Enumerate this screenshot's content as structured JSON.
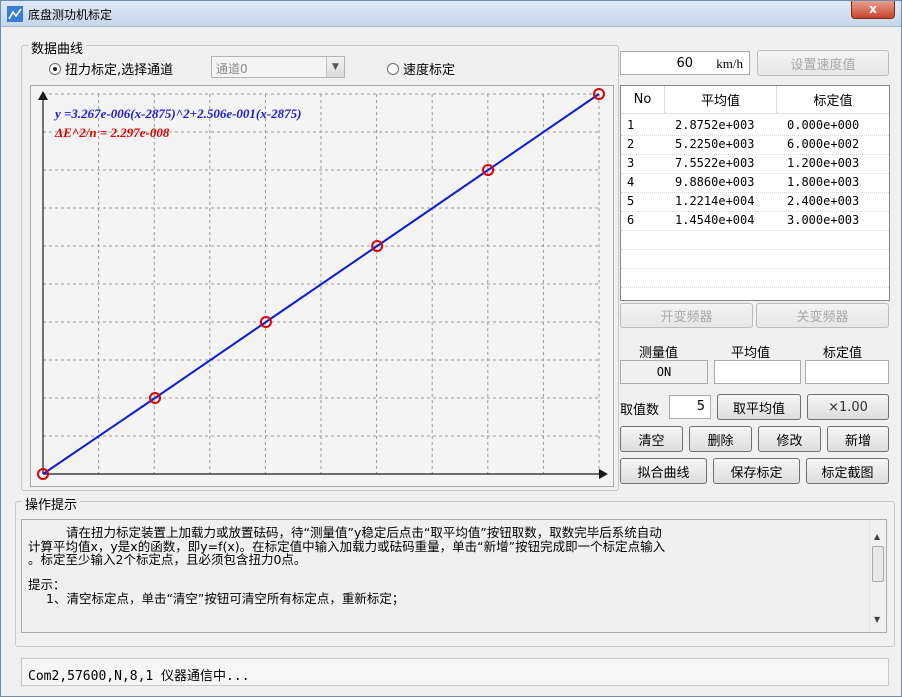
{
  "window": {
    "title": "底盘测功机标定",
    "close_label": "x"
  },
  "data_group": {
    "title": "数据曲线"
  },
  "mode": {
    "torque_label": "扭力标定,选择通道",
    "channel_value": "通道0",
    "speed_label": "速度标定"
  },
  "speed": {
    "value": "60",
    "unit": "km/h",
    "set_button": "设置速度值"
  },
  "chart": {
    "formula": "y =3.267e-006(x-2875)^2+2.506e-001(x-2875)",
    "error": "ΔE^2/n = 2.297e-008"
  },
  "chart_data": {
    "type": "line",
    "x": [
      2875.2,
      5225.0,
      7552.2,
      9886.0,
      12214,
      14540
    ],
    "y": [
      0,
      600,
      1200,
      1800,
      2400,
      3000
    ],
    "xlim": [
      2875.2,
      14540
    ],
    "ylim": [
      0,
      3000
    ],
    "grid": true,
    "colors": {
      "line": "#0a1ed6",
      "marker": "#e00000",
      "formula": "#1a1adc",
      "error": "#e00000"
    }
  },
  "table": {
    "headers": [
      "No",
      "平均值",
      "标定值"
    ],
    "rows": [
      {
        "no": "1",
        "avg": "2.8752e+003",
        "cal": "0.000e+000"
      },
      {
        "no": "2",
        "avg": "5.2250e+003",
        "cal": "6.000e+002"
      },
      {
        "no": "3",
        "avg": "7.5522e+003",
        "cal": "1.200e+003"
      },
      {
        "no": "4",
        "avg": "9.8860e+003",
        "cal": "1.800e+003"
      },
      {
        "no": "5",
        "avg": "1.2214e+004",
        "cal": "2.400e+003"
      },
      {
        "no": "6",
        "avg": "1.4540e+004",
        "cal": "3.000e+003"
      }
    ]
  },
  "inverter": {
    "on_button": "开变频器",
    "off_button": "关变频器"
  },
  "measure": {
    "measured_label": "测量值",
    "avg_label": "平均值",
    "cal_label": "标定值",
    "measured_value": "ON",
    "avg_value": "",
    "cal_value": ""
  },
  "sampling": {
    "label": "取值数",
    "count": "5",
    "avg_button": "取平均值",
    "multiplier": "×1.00"
  },
  "actions": {
    "clear": "清空",
    "delete": "删除",
    "modify": "修改",
    "add": "新增"
  },
  "actions2": {
    "fit": "拟合曲线",
    "save": "保存标定",
    "capture": "标定截图"
  },
  "hint": {
    "title": "操作提示",
    "line1": "请在扭力标定装置上加载力或放置砝码，待“测量值”y稳定后点击“取平均值”按钮取数，取数完毕后系统自动",
    "line2": "计算平均值x，y是x的函数，即y=f(x)。在标定值中输入加载力或砝码重量，单击“新增”按钮完成即一个标定点输入",
    "line3": "。标定至少输入2个标定点，且必须包含扭力0点。",
    "line4": "提示：",
    "line5": "1、清空标定点，单击“清空”按钮可清空所有标定点，重新标定；"
  },
  "status": {
    "text": "Com2,57600,N,8,1 仪器通信中..."
  }
}
